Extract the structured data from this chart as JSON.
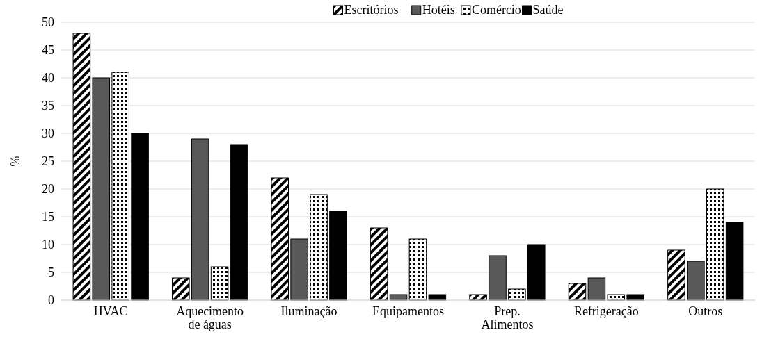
{
  "chart_data": {
    "type": "bar",
    "ylabel": "%",
    "categories": [
      "HVAC",
      "Aquecimento de águas",
      "Iluminação",
      "Equipamentos",
      "Prep. Alimentos",
      "Refrigeração",
      "Outros"
    ],
    "series": [
      {
        "name": "Escritórios",
        "color": "#000000",
        "values": [
          48,
          4,
          22,
          13,
          1,
          3,
          9
        ]
      },
      {
        "name": "Hotéis",
        "color": "#595959",
        "values": [
          40,
          29,
          11,
          1,
          8,
          4,
          7
        ]
      },
      {
        "name": "Comércio",
        "color": "#000000",
        "values": [
          41,
          6,
          19,
          11,
          2,
          1,
          20
        ]
      },
      {
        "name": "Saúde",
        "color": "#000000",
        "values": [
          30,
          28,
          16,
          1,
          10,
          1,
          14
        ]
      }
    ],
    "ylim": [
      0,
      50
    ],
    "yticks": [
      0,
      5,
      10,
      15,
      20,
      25,
      30,
      35,
      40,
      45,
      50
    ],
    "grid": "y",
    "legend": "top"
  }
}
